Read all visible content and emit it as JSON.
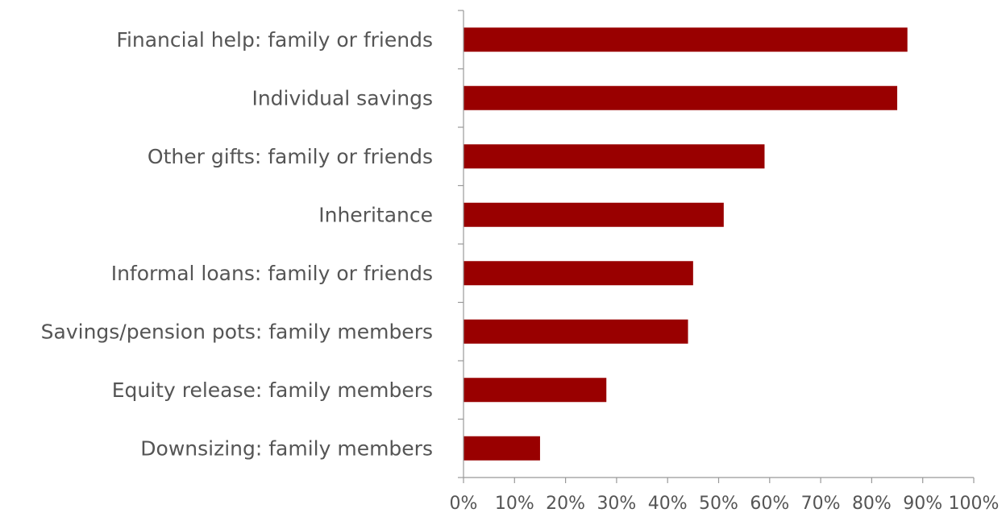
{
  "chart_data": {
    "type": "bar",
    "orientation": "horizontal",
    "categories": [
      "Financial help: family or friends",
      "Individual savings",
      "Other gifts: family or friends",
      "Inheritance",
      "Informal loans: family or friends",
      "Savings/pension pots: family members",
      "Equity release: family members",
      "Downsizing: family members"
    ],
    "values": [
      87,
      85,
      59,
      51,
      45,
      44,
      28,
      15
    ],
    "x_ticks": [
      "0%",
      "10%",
      "20%",
      "30%",
      "40%",
      "50%",
      "60%",
      "70%",
      "80%",
      "90%",
      "100%"
    ],
    "xlim": [
      0,
      100
    ],
    "unit": "%",
    "grid": false,
    "legend": "none",
    "colors": {
      "bar": "#990000",
      "axis": "#999999",
      "text": "#555555"
    }
  }
}
